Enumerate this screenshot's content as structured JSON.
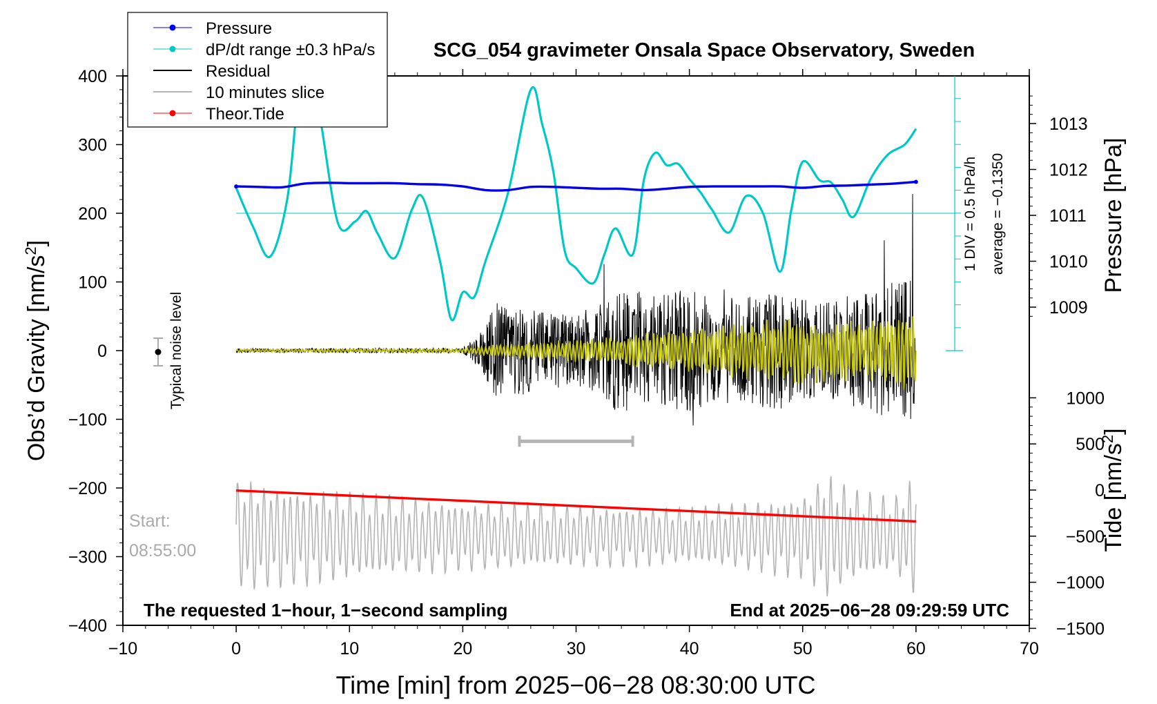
{
  "chart_data": {
    "type": "line",
    "title": "SCG_054 gravimeter Onsala Space Observatory, Sweden",
    "xlabel": "Time [min] from 2025−06−28 08:30:00 UTC",
    "ylabel_left": "Obs’d Gravity [nm/s",
    "ylabel_left_sup": "2",
    "ylabel_left_end": "]",
    "ylabel_right_pressure": "Pressure [hPa]",
    "ylabel_right_tide": "Tide [nm/s",
    "ylabel_right_tide_sup": "2",
    "ylabel_right_tide_end": "]",
    "xlim": [
      -10,
      70
    ],
    "ylim": [
      -400,
      400
    ],
    "x_ticks": [
      "−10",
      "0",
      "10",
      "20",
      "30",
      "40",
      "50",
      "60",
      "70"
    ],
    "y_ticks": [
      "−400",
      "−300",
      "−200",
      "−100",
      "0",
      "100",
      "200",
      "300",
      "400"
    ],
    "pressure_ticks": [
      "1013",
      "1012",
      "1011",
      "1010",
      "1009"
    ],
    "tide_ticks": [
      "1000",
      "500",
      "0",
      "−500",
      "−1000",
      "−1500"
    ],
    "grid": false,
    "legend_position": "top-left",
    "legend": [
      {
        "label": "Pressure",
        "color": "#0000ee",
        "marker": true
      },
      {
        "label": "dP/dt range ±0.3 hPa/s",
        "color": "#00c8c8",
        "marker": true
      },
      {
        "label": "Residual",
        "color": "#000000",
        "marker": false
      },
      {
        "label": "10 minutes slice",
        "color": "#b4b4b4",
        "marker": false
      },
      {
        "label": "Theor.Tide",
        "color": "#ff0000",
        "marker": true
      }
    ],
    "annotations": {
      "noise": "Typical noise level",
      "div": "1 DIV = 0.5 hPa/h",
      "average": "average = −0.1350",
      "start_label": "Start:",
      "start_time": "08:55:00",
      "bottom_left": "The requested 1−hour, 1−second sampling",
      "bottom_right": "End at 2025−06−28 09:29:59 UTC"
    },
    "slice_marker_x": [
      25,
      35
    ],
    "slice_marker_y": -132,
    "dpdt_reference_level": 200,
    "series": [
      {
        "name": "Pressure",
        "unit": "hPa",
        "color": "#0000ee",
        "x": [
          0,
          2,
          4,
          6,
          8,
          10,
          12,
          14,
          16,
          18,
          20,
          22,
          24,
          26,
          28,
          30,
          32,
          34,
          36,
          38,
          40,
          42,
          44,
          46,
          48,
          50,
          52,
          54,
          56,
          58,
          60
        ],
        "values": [
          1011.63,
          1011.62,
          1011.61,
          1011.69,
          1011.71,
          1011.7,
          1011.7,
          1011.7,
          1011.68,
          1011.67,
          1011.63,
          1011.55,
          1011.55,
          1011.62,
          1011.62,
          1011.6,
          1011.58,
          1011.58,
          1011.55,
          1011.58,
          1011.62,
          1011.63,
          1011.63,
          1011.63,
          1011.63,
          1011.6,
          1011.64,
          1011.65,
          1011.67,
          1011.69,
          1011.73
        ]
      },
      {
        "name": "dP/dt range ±0.3 hPa/s",
        "unit": "nm/s2 display",
        "color": "#00c8c8",
        "x": [
          0,
          1.5,
          3,
          4.5,
          5.5,
          6.5,
          7.5,
          9,
          10.5,
          11.5,
          12.5,
          14,
          15.5,
          16.5,
          18,
          19,
          20,
          21,
          22,
          24,
          26,
          27,
          28,
          29,
          30,
          31.5,
          32.5,
          33.5,
          35,
          36,
          37,
          38,
          39,
          40,
          41,
          42,
          43.5,
          45,
          46.5,
          48,
          49,
          50,
          51.5,
          52.5,
          53.5,
          54.5,
          56,
          57.5,
          59,
          60
        ],
        "values": [
          237,
          180,
          137,
          220,
          370,
          420,
          330,
          185,
          188,
          203,
          170,
          135,
          205,
          222,
          130,
          45,
          85,
          78,
          130,
          230,
          380,
          330,
          260,
          145,
          120,
          98,
          140,
          178,
          140,
          250,
          288,
          270,
          272,
          250,
          230,
          205,
          172,
          225,
          200,
          115,
          205,
          275,
          248,
          245,
          220,
          195,
          250,
          285,
          300,
          323
        ]
      },
      {
        "name": "Residual",
        "unit": "nm/s2",
        "color": "#000000",
        "amplitude_x": [
          0,
          20,
          21.5,
          23,
          25,
          28,
          31,
          34,
          37,
          40,
          42,
          45,
          48,
          52,
          56,
          60
        ],
        "amplitude_values": [
          3,
          4,
          25,
          70,
          65,
          55,
          55,
          95,
          80,
          90,
          75,
          80,
          85,
          70,
          90,
          110
        ]
      },
      {
        "name": "Residual filtered",
        "unit": "nm/s2",
        "color": "#c8c800",
        "amplitude_x": [
          0,
          20,
          22,
          25,
          30,
          35,
          40,
          45,
          50,
          55,
          60
        ],
        "amplitude_values": [
          2,
          3,
          8,
          12,
          18,
          25,
          35,
          45,
          50,
          45,
          70
        ]
      },
      {
        "name": "10 minutes slice",
        "unit": "nm/s2",
        "color": "#b4b4b4",
        "center": -270,
        "amplitude_x": [
          0,
          10,
          20,
          30,
          40,
          50,
          52,
          55,
          58,
          60
        ],
        "amplitude_values": [
          90,
          70,
          55,
          50,
          45,
          65,
          100,
          70,
          60,
          100
        ]
      },
      {
        "name": "Theor.Tide",
        "unit": "nm/s2",
        "color": "#ff0000",
        "x": [
          0,
          60
        ],
        "values": [
          -5,
          -340
        ]
      }
    ]
  }
}
